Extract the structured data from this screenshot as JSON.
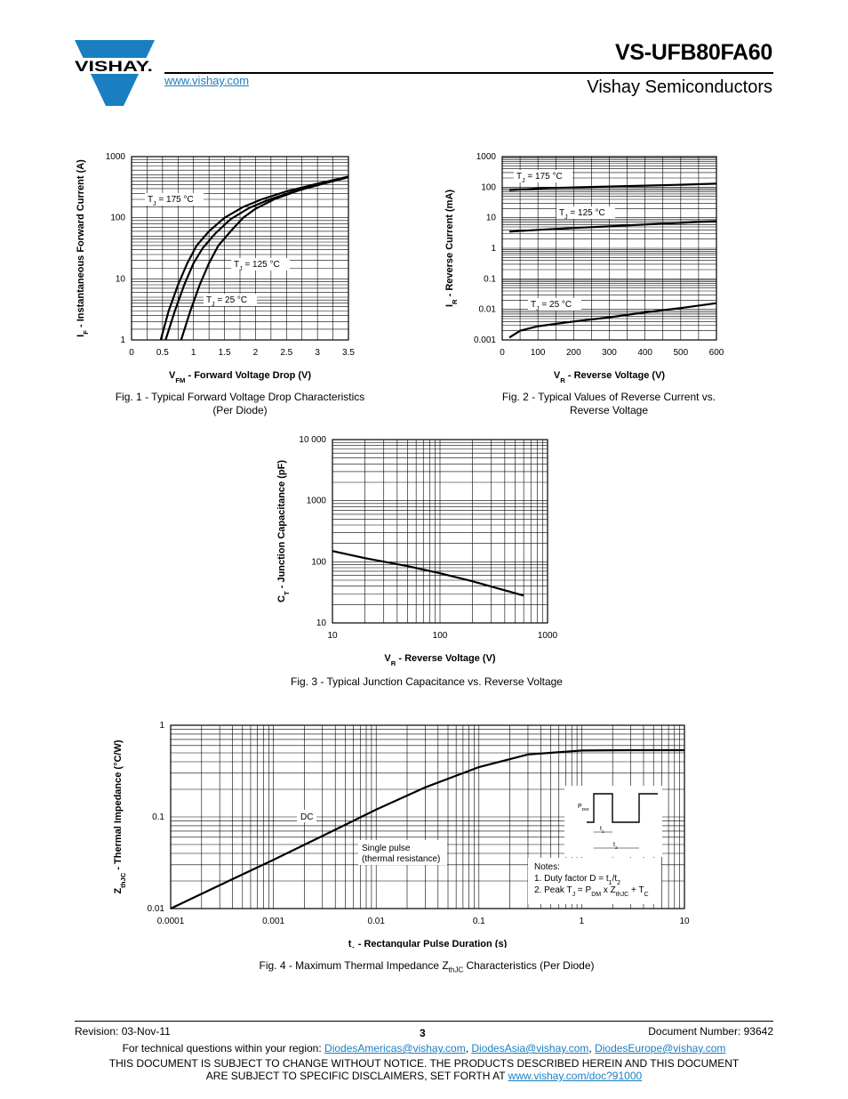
{
  "header": {
    "part_number": "VS-UFB80FA60",
    "division": "Vishay Semiconductors",
    "website": "www.vishay.com",
    "logo_text": "VISHAY."
  },
  "figures": {
    "fig1": {
      "caption_line1": "Fig. 1 - Typical Forward Voltage Drop Characteristics",
      "caption_line2": "(Per Diode)"
    },
    "fig2": {
      "caption_line1": "Fig. 2 - Typical Values of Reverse Current vs.",
      "caption_line2": "Reverse Voltage"
    },
    "fig3": {
      "caption_line1": "Fig. 3 - Typical Junction Capacitance vs. Reverse Voltage"
    },
    "fig4": {
      "caption_prefix": "Fig. 4 - Maximum Thermal Impedance Z",
      "caption_sub": "thJC",
      "caption_suffix": " Characteristics (Per Diode)"
    }
  },
  "chart_data": [
    {
      "type": "line",
      "xlabel_main": "V",
      "xlabel_sub": "FM",
      "xlabel_rest": " - Forward Voltage Drop (V)",
      "ylabel_main": "I",
      "ylabel_sub": "F",
      "ylabel_rest": " - Instantaneous Forward Current (A)",
      "xlim": [
        0,
        3.5
      ],
      "ylim": [
        1,
        1000
      ],
      "yscale": "log",
      "x_ticks": [
        "0",
        "0.5",
        "1",
        "1.5",
        "2",
        "2.5",
        "3",
        "3.5"
      ],
      "y_ticks": [
        "1",
        "10",
        "100",
        "1000"
      ],
      "series": [
        {
          "name": "T_J = 175 °C",
          "label_main": "T",
          "label_sub": "J",
          "label_rest": " = 175 °C",
          "x": [
            0.47,
            0.6,
            0.75,
            0.9,
            1.05,
            1.25,
            1.5,
            1.8,
            2.1,
            2.5,
            3.0,
            3.5
          ],
          "y": [
            1,
            3,
            8,
            18,
            35,
            60,
            100,
            150,
            200,
            270,
            360,
            470
          ]
        },
        {
          "name": "T_J = 125 °C",
          "label_main": "T",
          "label_sub": "J",
          "label_rest": " = 125 °C",
          "x": [
            0.55,
            0.7,
            0.85,
            1.0,
            1.15,
            1.35,
            1.6,
            1.9,
            2.2,
            2.6,
            3.0,
            3.5
          ],
          "y": [
            1,
            3,
            8,
            18,
            32,
            55,
            95,
            145,
            195,
            265,
            340,
            460
          ]
        },
        {
          "name": "T_J = 25 °C",
          "label_main": "T",
          "label_sub": "J",
          "label_rest": " = 25 °C",
          "x": [
            0.8,
            0.95,
            1.1,
            1.25,
            1.4,
            1.6,
            1.8,
            2.0,
            2.3,
            2.7,
            3.1,
            3.5
          ],
          "y": [
            1,
            3,
            8,
            18,
            35,
            60,
            100,
            140,
            200,
            280,
            370,
            470
          ]
        }
      ]
    },
    {
      "type": "line",
      "xlabel_main": "V",
      "xlabel_sub": "R",
      "xlabel_rest": " - Reverse Voltage (V)",
      "ylabel_main": "I",
      "ylabel_sub": "R",
      "ylabel_rest": " - Reverse Current (mA)",
      "xlim": [
        0,
        600
      ],
      "ylim": [
        0.001,
        1000
      ],
      "yscale": "log",
      "x_ticks": [
        "0",
        "100",
        "200",
        "300",
        "400",
        "500",
        "600"
      ],
      "y_ticks": [
        "0.001",
        "0.01",
        "0.1",
        "1",
        "10",
        "100",
        "1000"
      ],
      "series": [
        {
          "name": "T_J = 175 °C",
          "label_main": "T",
          "label_sub": "J",
          "label_rest": " = 175 °C",
          "x": [
            20,
            100,
            200,
            300,
            400,
            500,
            600
          ],
          "y": [
            80,
            90,
            98,
            105,
            112,
            120,
            130
          ]
        },
        {
          "name": "T_J = 125 °C",
          "label_main": "T",
          "label_sub": "J",
          "label_rest": " = 125 °C",
          "x": [
            20,
            100,
            200,
            300,
            400,
            500,
            600
          ],
          "y": [
            3.5,
            4.0,
            4.6,
            5.2,
            6.0,
            6.8,
            7.8
          ]
        },
        {
          "name": "T_J = 25 °C",
          "label_main": "T",
          "label_sub": "J",
          "label_rest": " = 25 °C",
          "x": [
            20,
            50,
            100,
            200,
            300,
            400,
            500,
            600
          ],
          "y": [
            0.0012,
            0.002,
            0.0028,
            0.004,
            0.0055,
            0.008,
            0.011,
            0.016
          ]
        }
      ]
    },
    {
      "type": "line",
      "xlabel_main": "V",
      "xlabel_sub": "R",
      "xlabel_rest": " - Reverse Voltage (V)",
      "ylabel_main": "C",
      "ylabel_sub": "T",
      "ylabel_rest": " - Junction Capacitance (pF)",
      "xlim": [
        10,
        1000
      ],
      "ylim": [
        10,
        10000
      ],
      "xscale": "log",
      "yscale": "log",
      "x_ticks": [
        "10",
        "100",
        "1000"
      ],
      "y_ticks": [
        "10",
        "100",
        "1000",
        "10 000"
      ],
      "series": [
        {
          "name": "",
          "x": [
            10,
            20,
            50,
            100,
            200,
            600
          ],
          "y": [
            150,
            115,
            85,
            65,
            48,
            28
          ]
        }
      ]
    },
    {
      "type": "line",
      "xlabel_main": "t",
      "xlabel_sub": "1",
      "xlabel_rest": " - Rectangular Pulse Duration (s)",
      "ylabel_main": "Z",
      "ylabel_sub": "thJC",
      "ylabel_rest": " - Thermal Impedance (°C/W)",
      "xlim": [
        0.0001,
        10
      ],
      "ylim": [
        0.01,
        1
      ],
      "xscale": "log",
      "yscale": "log",
      "x_ticks": [
        "0.0001",
        "0.001",
        "0.01",
        "0.1",
        "1",
        "10"
      ],
      "y_ticks": [
        "0.01",
        "0.1",
        "1"
      ],
      "series": [
        {
          "name": "DC",
          "x": [
            0.0001,
            0.0003,
            0.001,
            0.003,
            0.01,
            0.03,
            0.1,
            0.3,
            1,
            3,
            10
          ],
          "y": [
            0.01,
            0.018,
            0.034,
            0.062,
            0.12,
            0.21,
            0.35,
            0.48,
            0.53,
            0.535,
            0.535
          ]
        }
      ],
      "annotations": {
        "dc": "DC",
        "single_pulse_1": "Single pulse",
        "single_pulse_2": "(thermal resistance)",
        "notes_title": "Notes:",
        "note1_prefix": "1. Duty factor D = t",
        "note1_sub1": "1",
        "note1_mid": "/t",
        "note1_sub2": "2",
        "note2_prefix": "2. Peak T",
        "note2_subJ": "J",
        "note2_eq": " = P",
        "note2_subDM": "DM",
        "note2_x": " x Z",
        "note2_subthJC": "thJC",
        "note2_plus": " + T",
        "note2_subC": "C",
        "pdm": "P",
        "pdm_sub": "DM",
        "t1": "t",
        "t1_sub": "1",
        "t2": "t",
        "t2_sub": "2"
      }
    }
  ],
  "footer": {
    "revision": "Revision: 03-Nov-11",
    "page": "3",
    "document_number": "Document Number: 93642",
    "tech_questions": "For technical questions within your region: ",
    "email_americas": "DiodesAmericas@vishay.com",
    "sep1": ", ",
    "email_asia": "DiodesAsia@vishay.com",
    "sep2": ", ",
    "email_europe": "DiodesEurope@vishay.com",
    "disclaimer_line1": "THIS DOCUMENT IS SUBJECT TO CHANGE WITHOUT NOTICE. THE PRODUCTS DESCRIBED HEREIN AND THIS DOCUMENT",
    "disclaimer_line2": "ARE SUBJECT TO SPECIFIC DISCLAIMERS, SET FORTH AT ",
    "disclaimer_link": "www.vishay.com/doc?91000"
  }
}
